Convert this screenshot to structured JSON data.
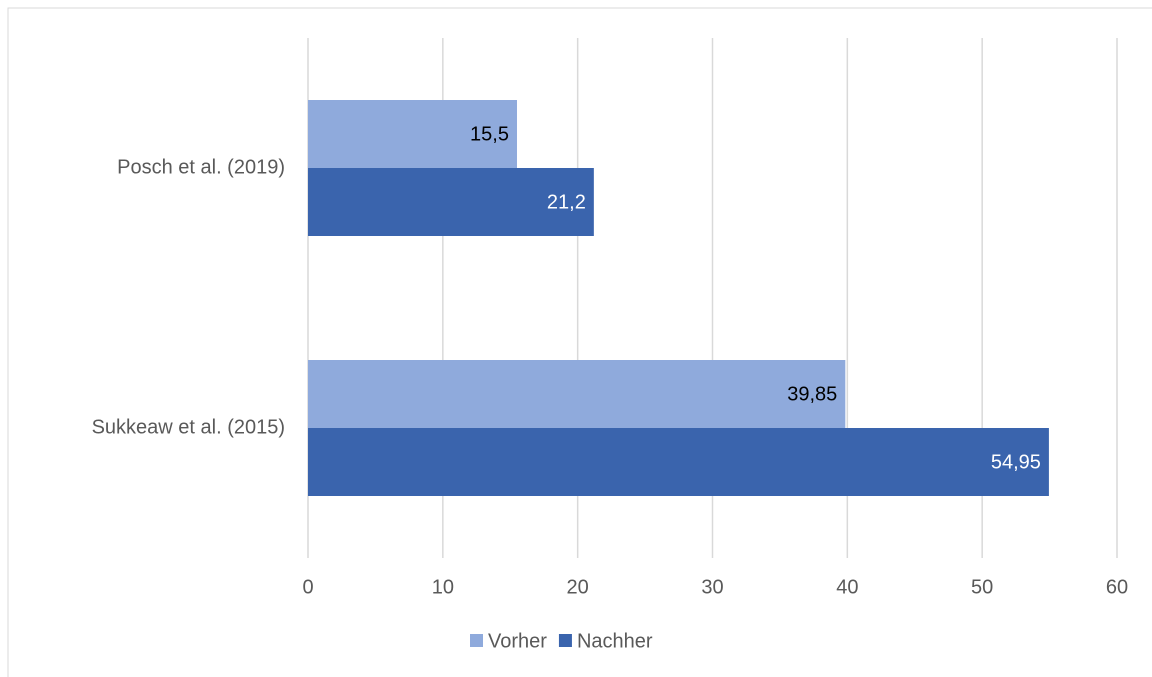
{
  "chart_data": {
    "type": "hbar",
    "categories": [
      "Posch et al. (2019)",
      "Sukkeaw et al. (2015)"
    ],
    "series": [
      {
        "name": "Vorher",
        "color": "#8faadc",
        "values": [
          15.5,
          39.85
        ],
        "value_labels": [
          "15,5",
          "39,85"
        ]
      },
      {
        "name": "Nachher",
        "color": "#3a64ad",
        "values": [
          21.2,
          54.95
        ],
        "value_labels": [
          "21,2",
          "54,95"
        ]
      }
    ],
    "xlim": [
      0,
      60
    ],
    "xticks": [
      0,
      10,
      20,
      30,
      40,
      50,
      60
    ],
    "grid": true,
    "legend": "bottom"
  }
}
